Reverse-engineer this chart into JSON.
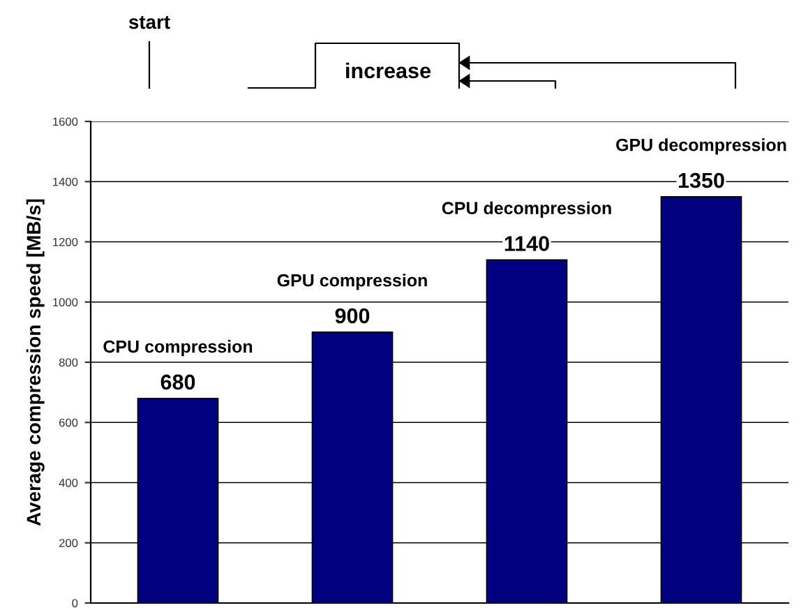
{
  "chart_data": {
    "type": "bar",
    "categories": [
      "CPU compression",
      "GPU compression",
      "CPU decompression",
      "GPU decompression"
    ],
    "values": [
      680,
      900,
      1140,
      1350
    ],
    "color": "#000080",
    "ylabel": "Average compression speed [MB/s]",
    "ylim": [
      0,
      1600
    ],
    "yticks": [
      0,
      200,
      400,
      600,
      800,
      1000,
      1200,
      1400,
      1600
    ],
    "grid": "y",
    "data_labels": true,
    "annotations": [
      "start",
      "increase"
    ]
  }
}
